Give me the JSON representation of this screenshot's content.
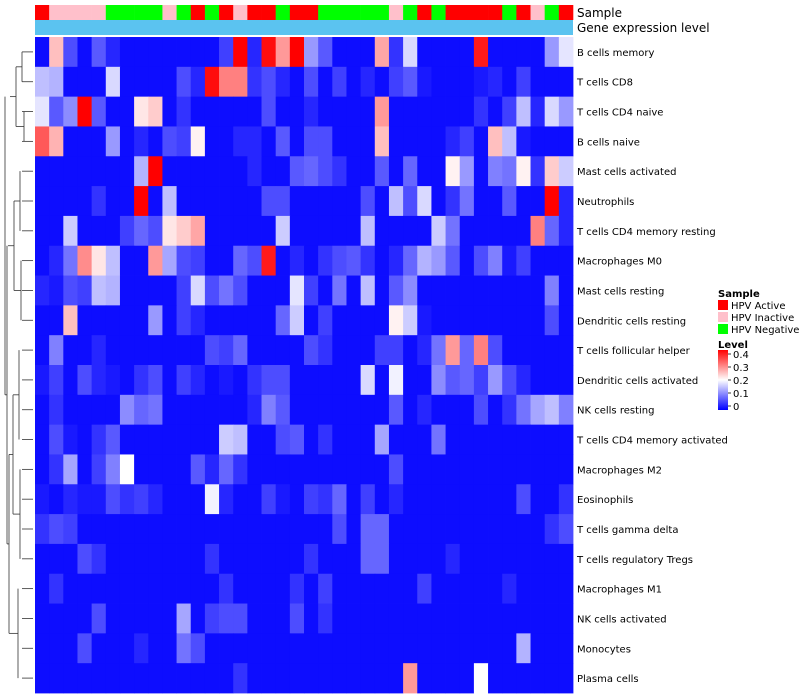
{
  "chart_data": {
    "type": "heatmap",
    "annotation_titles": {
      "sample": "Sample",
      "gene_expression": "Gene expression level"
    },
    "rows": [
      "B cells memory",
      "T cells CD8",
      "T cells CD4 naive",
      "B cells naive",
      "Mast cells activated",
      "Neutrophils",
      "T cells CD4 memory resting",
      "Macrophages M0",
      "Mast cells resting",
      "Dendritic cells resting",
      "T cells follicular helper",
      "Dendritic cells activated",
      "NK cells resting",
      "T cells CD4 memory activated",
      "Macrophages M2",
      "Eosinophils",
      "T cells gamma delta",
      "T cells regulatory  Tregs",
      "Macrophages M1",
      "NK cells activated",
      "Monocytes",
      "Plasma cells"
    ],
    "sample_groups": [
      "Active",
      "Inactive",
      "Inactive",
      "Inactive",
      "Inactive",
      "Negative",
      "Negative",
      "Negative",
      "Negative",
      "Inactive",
      "Negative",
      "Active",
      "Negative",
      "Active",
      "Inactive",
      "Active",
      "Active",
      "Negative",
      "Active",
      "Active",
      "Negative",
      "Negative",
      "Negative",
      "Negative",
      "Negative",
      "Inactive",
      "Negative",
      "Active",
      "Negative",
      "Active",
      "Active",
      "Active",
      "Active",
      "Negative",
      "Active",
      "Inactive",
      "Negative",
      "Active"
    ],
    "legend": {
      "sample_title": "Sample",
      "sample_entries": [
        {
          "label": "HPV Active",
          "color": "#ff0000"
        },
        {
          "label": "HPV Inactive",
          "color": "#ffc0cb"
        },
        {
          "label": "HPV Negative",
          "color": "#00ff00"
        }
      ],
      "level_title": "Level",
      "level_ticks": [
        0.4,
        0.3,
        0.2,
        0.1,
        0
      ],
      "level_tick_labels": [
        "0.4",
        "0.3",
        "0.2",
        "0.1",
        "0"
      ],
      "level_range": [
        0,
        0.4
      ]
    },
    "color_scale": {
      "low": "#0000ff",
      "mid": "#ffffff",
      "high": "#ff0000",
      "mid_value": 0.2
    },
    "gene_expression_bar_color": "#5bc3f0",
    "values": [
      [
        0.01,
        0.25,
        0.06,
        0.01,
        0.07,
        0.03,
        0.01,
        0.01,
        0.01,
        0.01,
        0.01,
        0.01,
        0.01,
        0.05,
        0.4,
        0.03,
        0.39,
        0.28,
        0.4,
        0.12,
        0.07,
        0.01,
        0.01,
        0.01,
        0.27,
        0.04,
        0.17,
        0.01,
        0.01,
        0.01,
        0.01,
        0.38,
        0.01,
        0.01,
        0.01,
        0.01,
        0.12,
        0.18
      ],
      [
        0.15,
        0.14,
        0.01,
        0.01,
        0.01,
        0.17,
        0.01,
        0.01,
        0.01,
        0.01,
        0.06,
        0.03,
        0.39,
        0.3,
        0.3,
        0.04,
        0.06,
        0.03,
        0.01,
        0.06,
        0.01,
        0.05,
        0.01,
        0.03,
        0.01,
        0.05,
        0.07,
        0.02,
        0.01,
        0.01,
        0.01,
        0.02,
        0.03,
        0.01,
        0.05,
        0.01,
        0.01,
        0.01
      ],
      [
        0.18,
        0.07,
        0.11,
        0.4,
        0.07,
        0.01,
        0.01,
        0.22,
        0.24,
        0.01,
        0.04,
        0.01,
        0.01,
        0.01,
        0.01,
        0.01,
        0.06,
        0.01,
        0.01,
        0.03,
        0.01,
        0.01,
        0.01,
        0.01,
        0.28,
        0.01,
        0.01,
        0.01,
        0.01,
        0.01,
        0.01,
        0.04,
        0.01,
        0.05,
        0.15,
        0.03,
        0.17,
        0.12
      ],
      [
        0.33,
        0.26,
        0.01,
        0.01,
        0.01,
        0.12,
        0.01,
        0.03,
        0.01,
        0.06,
        0.05,
        0.21,
        0.01,
        0.01,
        0.03,
        0.03,
        0.01,
        0.07,
        0.01,
        0.06,
        0.06,
        0.01,
        0.01,
        0.01,
        0.25,
        0.01,
        0.01,
        0.01,
        0.01,
        0.03,
        0.05,
        0.01,
        0.25,
        0.15,
        0.02,
        0.01,
        0.01,
        0.01
      ],
      [
        0.01,
        0.01,
        0.01,
        0.01,
        0.01,
        0.01,
        0.01,
        0.14,
        0.41,
        0.01,
        0.01,
        0.01,
        0.01,
        0.01,
        0.01,
        0.03,
        0.01,
        0.01,
        0.07,
        0.08,
        0.06,
        0.04,
        0.01,
        0.01,
        0.07,
        0.01,
        0.08,
        0.01,
        0.01,
        0.21,
        0.12,
        0.01,
        0.1,
        0.09,
        0.21,
        0.04,
        0.24,
        0.16
      ],
      [
        0.01,
        0.01,
        0.01,
        0.01,
        0.04,
        0.01,
        0.01,
        0.4,
        0.01,
        0.15,
        0.01,
        0.01,
        0.01,
        0.01,
        0.01,
        0.01,
        0.06,
        0.06,
        0.01,
        0.01,
        0.01,
        0.01,
        0.01,
        0.06,
        0.01,
        0.15,
        0.06,
        0.17,
        0.01,
        0.04,
        0.09,
        0.01,
        0.01,
        0.07,
        0.01,
        0.01,
        0.4,
        0.03
      ],
      [
        0.01,
        0.01,
        0.16,
        0.01,
        0.01,
        0.01,
        0.05,
        0.08,
        0.06,
        0.22,
        0.24,
        0.27,
        0.01,
        0.01,
        0.01,
        0.01,
        0.01,
        0.16,
        0.01,
        0.01,
        0.01,
        0.01,
        0.01,
        0.15,
        0.01,
        0.01,
        0.01,
        0.01,
        0.16,
        0.09,
        0.01,
        0.01,
        0.01,
        0.01,
        0.01,
        0.3,
        0.08,
        0.03
      ],
      [
        0.01,
        0.03,
        0.09,
        0.29,
        0.22,
        0.15,
        0.01,
        0.01,
        0.28,
        0.13,
        0.06,
        0.05,
        0.01,
        0.01,
        0.08,
        0.06,
        0.38,
        0.01,
        0.03,
        0.01,
        0.04,
        0.06,
        0.07,
        0.04,
        0.01,
        0.03,
        0.08,
        0.14,
        0.12,
        0.07,
        0.01,
        0.06,
        0.1,
        0.02,
        0.05,
        0.01,
        0.01,
        0.01
      ],
      [
        0.03,
        0.02,
        0.06,
        0.05,
        0.15,
        0.14,
        0.01,
        0.01,
        0.01,
        0.01,
        0.05,
        0.17,
        0.06,
        0.09,
        0.06,
        0.01,
        0.01,
        0.01,
        0.18,
        0.05,
        0.01,
        0.09,
        0.01,
        0.15,
        0.01,
        0.07,
        0.11,
        0.01,
        0.01,
        0.01,
        0.01,
        0.01,
        0.01,
        0.01,
        0.01,
        0.01,
        0.1,
        0.01
      ],
      [
        0.01,
        0.01,
        0.25,
        0.01,
        0.01,
        0.01,
        0.01,
        0.01,
        0.12,
        0.01,
        0.05,
        0.03,
        0.01,
        0.01,
        0.01,
        0.01,
        0.01,
        0.08,
        0.16,
        0.01,
        0.05,
        0.01,
        0.01,
        0.01,
        0.01,
        0.21,
        0.16,
        0.02,
        0.01,
        0.01,
        0.01,
        0.01,
        0.01,
        0.01,
        0.01,
        0.01,
        0.06,
        0.01
      ],
      [
        0.01,
        0.1,
        0.01,
        0.01,
        0.03,
        0.01,
        0.01,
        0.01,
        0.01,
        0.01,
        0.01,
        0.01,
        0.06,
        0.05,
        0.08,
        0.01,
        0.01,
        0.01,
        0.01,
        0.06,
        0.04,
        0.01,
        0.01,
        0.01,
        0.05,
        0.05,
        0.01,
        0.03,
        0.09,
        0.28,
        0.08,
        0.3,
        0.06,
        0.01,
        0.01,
        0.01,
        0.01,
        0.01
      ],
      [
        0.02,
        0.05,
        0.01,
        0.06,
        0.03,
        0.02,
        0.01,
        0.04,
        0.06,
        0.01,
        0.05,
        0.03,
        0.01,
        0.02,
        0.01,
        0.04,
        0.06,
        0.06,
        0.01,
        0.01,
        0.01,
        0.01,
        0.01,
        0.17,
        0.01,
        0.19,
        0.01,
        0.01,
        0.11,
        0.07,
        0.08,
        0.05,
        0.12,
        0.06,
        0.03,
        0.01,
        0.01,
        0.01
      ],
      [
        0.01,
        0.04,
        0.01,
        0.01,
        0.01,
        0.01,
        0.11,
        0.08,
        0.09,
        0.01,
        0.01,
        0.01,
        0.01,
        0.01,
        0.01,
        0.03,
        0.1,
        0.07,
        0.01,
        0.01,
        0.01,
        0.01,
        0.01,
        0.01,
        0.01,
        0.07,
        0.01,
        0.03,
        0.01,
        0.01,
        0.01,
        0.06,
        0.01,
        0.04,
        0.09,
        0.13,
        0.15,
        0.1
      ],
      [
        0.01,
        0.06,
        0.02,
        0.01,
        0.04,
        0.07,
        0.01,
        0.01,
        0.01,
        0.01,
        0.01,
        0.01,
        0.01,
        0.16,
        0.15,
        0.01,
        0.01,
        0.06,
        0.07,
        0.01,
        0.04,
        0.01,
        0.01,
        0.01,
        0.13,
        0.01,
        0.01,
        0.01,
        0.09,
        0.01,
        0.01,
        0.01,
        0.01,
        0.01,
        0.01,
        0.01,
        0.01,
        0.01
      ],
      [
        0.01,
        0.04,
        0.13,
        0.01,
        0.05,
        0.1,
        0.2,
        0.01,
        0.01,
        0.01,
        0.01,
        0.07,
        0.03,
        0.08,
        0.04,
        0.01,
        0.01,
        0.01,
        0.01,
        0.01,
        0.01,
        0.01,
        0.01,
        0.01,
        0.01,
        0.06,
        0.01,
        0.01,
        0.01,
        0.01,
        0.01,
        0.01,
        0.01,
        0.01,
        0.01,
        0.01,
        0.01,
        0.01
      ],
      [
        0.02,
        0.01,
        0.03,
        0.02,
        0.02,
        0.06,
        0.04,
        0.05,
        0.03,
        0.01,
        0.01,
        0.01,
        0.19,
        0.03,
        0.01,
        0.01,
        0.05,
        0.02,
        0.01,
        0.05,
        0.04,
        0.08,
        0.01,
        0.05,
        0.01,
        0.03,
        0.01,
        0.01,
        0.01,
        0.01,
        0.01,
        0.01,
        0.01,
        0.01,
        0.06,
        0.01,
        0.01,
        0.04
      ],
      [
        0.04,
        0.06,
        0.05,
        0.01,
        0.01,
        0.01,
        0.01,
        0.01,
        0.01,
        0.01,
        0.01,
        0.01,
        0.01,
        0.01,
        0.01,
        0.01,
        0.01,
        0.01,
        0.01,
        0.01,
        0.01,
        0.06,
        0.01,
        0.08,
        0.08,
        0.01,
        0.01,
        0.01,
        0.01,
        0.01,
        0.01,
        0.01,
        0.01,
        0.01,
        0.01,
        0.01,
        0.04,
        0.06
      ],
      [
        0.01,
        0.01,
        0.01,
        0.06,
        0.04,
        0.01,
        0.01,
        0.01,
        0.01,
        0.01,
        0.01,
        0.01,
        0.04,
        0.01,
        0.01,
        0.01,
        0.01,
        0.01,
        0.01,
        0.04,
        0.01,
        0.01,
        0.01,
        0.08,
        0.08,
        0.01,
        0.01,
        0.01,
        0.01,
        0.03,
        0.01,
        0.01,
        0.01,
        0.01,
        0.01,
        0.01,
        0.01,
        0.01
      ],
      [
        0.01,
        0.04,
        0.01,
        0.01,
        0.01,
        0.01,
        0.01,
        0.01,
        0.01,
        0.01,
        0.01,
        0.01,
        0.01,
        0.04,
        0.01,
        0.01,
        0.01,
        0.01,
        0.04,
        0.01,
        0.05,
        0.01,
        0.01,
        0.01,
        0.01,
        0.01,
        0.01,
        0.05,
        0.01,
        0.01,
        0.01,
        0.01,
        0.01,
        0.03,
        0.01,
        0.01,
        0.01,
        0.01
      ],
      [
        0.01,
        0.01,
        0.01,
        0.01,
        0.06,
        0.01,
        0.01,
        0.01,
        0.01,
        0.01,
        0.13,
        0.01,
        0.05,
        0.06,
        0.06,
        0.01,
        0.01,
        0.01,
        0.06,
        0.01,
        0.04,
        0.01,
        0.01,
        0.01,
        0.01,
        0.01,
        0.01,
        0.01,
        0.01,
        0.01,
        0.01,
        0.01,
        0.01,
        0.01,
        0.01,
        0.01,
        0.01,
        0.01
      ],
      [
        0.01,
        0.01,
        0.01,
        0.06,
        0.01,
        0.01,
        0.01,
        0.03,
        0.01,
        0.01,
        0.09,
        0.06,
        0.01,
        0.01,
        0.01,
        0.01,
        0.01,
        0.01,
        0.01,
        0.01,
        0.01,
        0.01,
        0.01,
        0.01,
        0.01,
        0.01,
        0.01,
        0.01,
        0.01,
        0.01,
        0.01,
        0.01,
        0.01,
        0.01,
        0.14,
        0.01,
        0.01,
        0.01
      ],
      [
        0.01,
        0.01,
        0.01,
        0.01,
        0.01,
        0.01,
        0.01,
        0.01,
        0.01,
        0.01,
        0.01,
        0.01,
        0.01,
        0.01,
        0.04,
        0.01,
        0.01,
        0.01,
        0.01,
        0.01,
        0.01,
        0.01,
        0.01,
        0.01,
        0.01,
        0.01,
        0.28,
        0.01,
        0.01,
        0.01,
        0.01,
        0.2,
        0.01,
        0.01,
        0.01,
        0.01,
        0.01,
        0.01
      ]
    ]
  }
}
